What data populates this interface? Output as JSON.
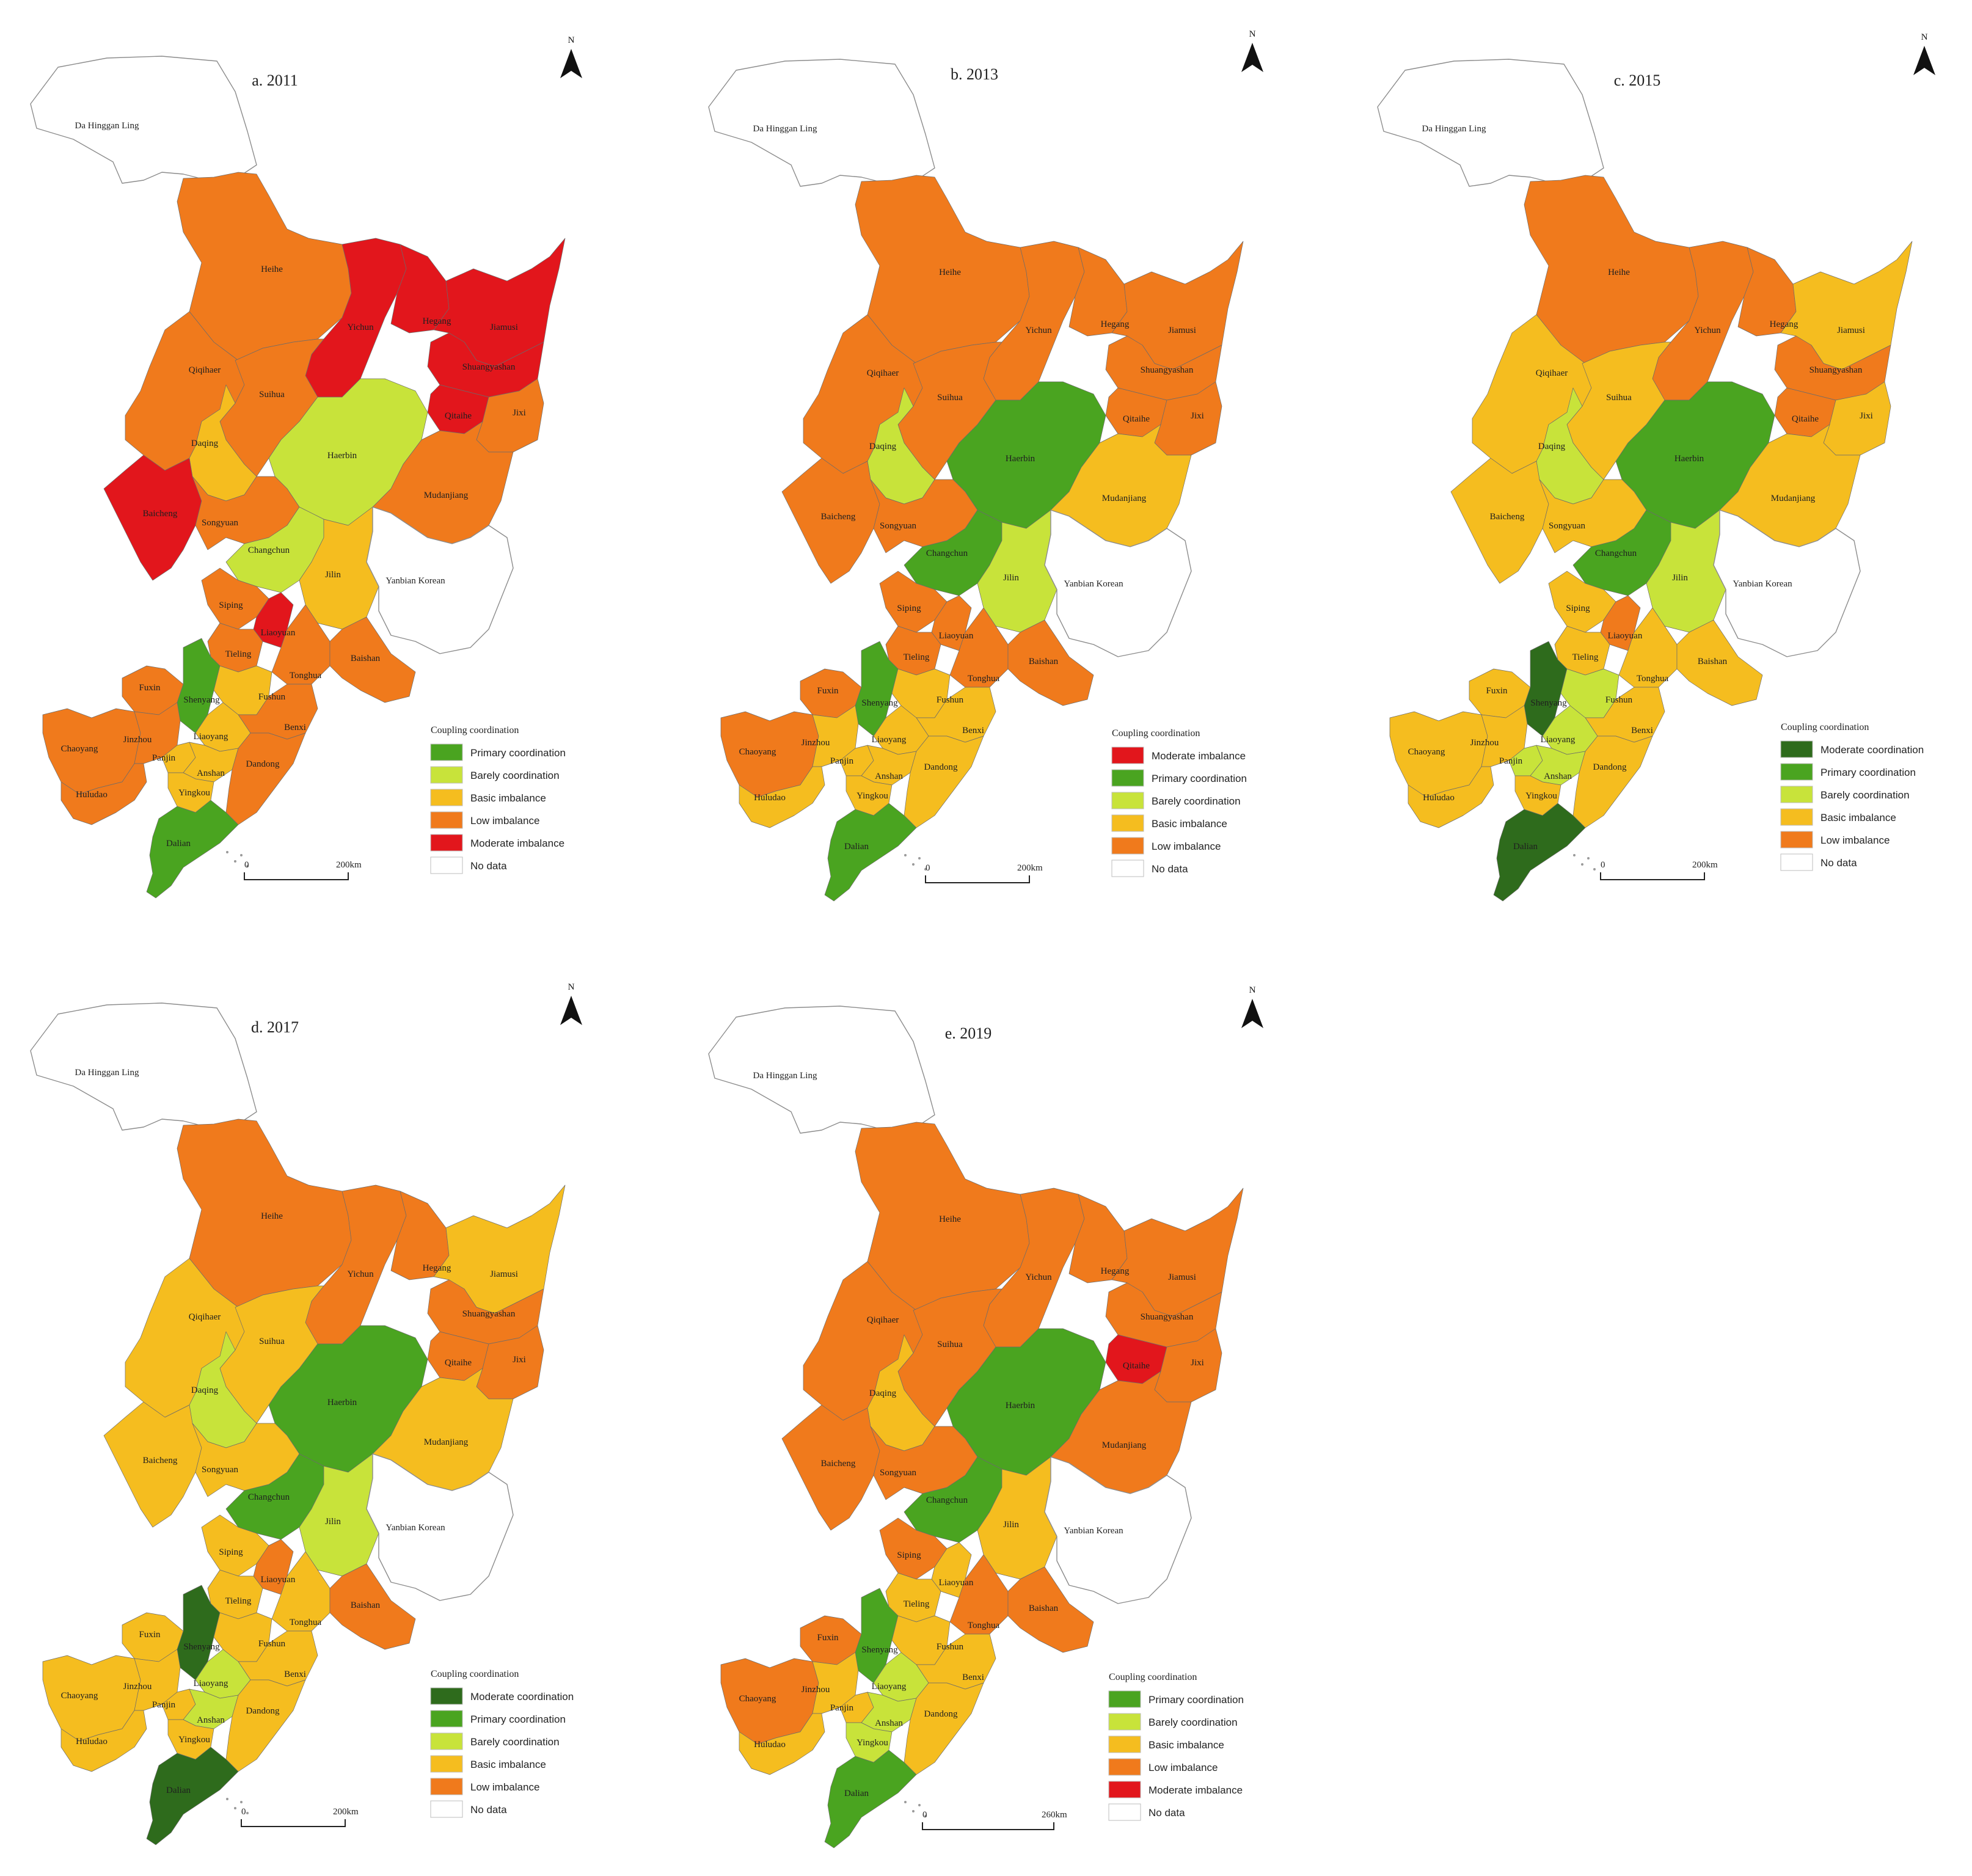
{
  "legend_title": "Coupling coordination",
  "north_label": "N",
  "colors": {
    "Moderate coordination": "#2e6b1c",
    "Primary coordination": "#4aa420",
    "Barely coordination": "#c8e33a",
    "Basic imbalance": "#f5bd1f",
    "Low imbalance": "#f07a1c",
    "Moderate imbalance": "#e2161c",
    "No data": "#ffffff"
  },
  "no_data_regions": [
    "Da Hinggan Ling",
    "Yanbian Korean"
  ],
  "region_names": [
    "Da Hinggan Ling",
    "Heihe",
    "Yichun",
    "Hegang",
    "Jiamusi",
    "Qiqihaer",
    "Shuangyashan",
    "Suihua",
    "Qitaihe",
    "Jixi",
    "Daqing",
    "Haerbin",
    "Mudanjiang",
    "Baicheng",
    "Songyuan",
    "Changchun",
    "Jilin",
    "Yanbian Korean",
    "Siping",
    "Liaoyuan",
    "Tieling",
    "Tonghua",
    "Baishan",
    "Fuxin",
    "Shenyang",
    "Fushun",
    "Benxi",
    "Chaoyang",
    "Jinzhou",
    "Liaoyang",
    "Panjin",
    "Anshan",
    "Dandong",
    "Huludao",
    "Yingkou",
    "Dalian"
  ],
  "panels": [
    {
      "title": "a. 2011",
      "scale_zero": "0",
      "scale_label": "200km",
      "legend": [
        "Primary coordination",
        "Barely coordination",
        "Basic imbalance",
        "Low imbalance",
        "Moderate imbalance",
        "No data"
      ],
      "values": {
        "Heihe": "Low imbalance",
        "Yichun": "Moderate imbalance",
        "Hegang": "Moderate imbalance",
        "Jiamusi": "Moderate imbalance",
        "Qiqihaer": "Low imbalance",
        "Shuangyashan": "Moderate imbalance",
        "Suihua": "Low imbalance",
        "Qitaihe": "Moderate imbalance",
        "Jixi": "Low imbalance",
        "Daqing": "Basic imbalance",
        "Haerbin": "Barely coordination",
        "Mudanjiang": "Low imbalance",
        "Baicheng": "Moderate imbalance",
        "Songyuan": "Low imbalance",
        "Changchun": "Barely coordination",
        "Jilin": "Basic imbalance",
        "Siping": "Low imbalance",
        "Liaoyuan": "Moderate imbalance",
        "Tieling": "Low imbalance",
        "Tonghua": "Low imbalance",
        "Baishan": "Low imbalance",
        "Fuxin": "Low imbalance",
        "Shenyang": "Primary coordination",
        "Fushun": "Basic imbalance",
        "Benxi": "Low imbalance",
        "Chaoyang": "Low imbalance",
        "Jinzhou": "Low imbalance",
        "Liaoyang": "Basic imbalance",
        "Panjin": "Basic imbalance",
        "Anshan": "Basic imbalance",
        "Dandong": "Low imbalance",
        "Huludao": "Low imbalance",
        "Yingkou": "Basic imbalance",
        "Dalian": "Primary coordination"
      }
    },
    {
      "title": "b. 2013",
      "scale_zero": "0",
      "scale_label": "200km",
      "legend": [
        "Moderate imbalance",
        "Primary coordination",
        "Barely coordination",
        "Basic imbalance",
        "Low  imbalance",
        "No data"
      ],
      "values": {
        "Heihe": "Low imbalance",
        "Yichun": "Low imbalance",
        "Hegang": "Low imbalance",
        "Jiamusi": "Low imbalance",
        "Qiqihaer": "Low imbalance",
        "Shuangyashan": "Low imbalance",
        "Suihua": "Low imbalance",
        "Qitaihe": "Low imbalance",
        "Jixi": "Low imbalance",
        "Daqing": "Barely coordination",
        "Haerbin": "Primary coordination",
        "Mudanjiang": "Basic imbalance",
        "Baicheng": "Low imbalance",
        "Songyuan": "Low imbalance",
        "Changchun": "Primary coordination",
        "Jilin": "Barely coordination",
        "Siping": "Low imbalance",
        "Liaoyuan": "Low imbalance",
        "Tieling": "Low imbalance",
        "Tonghua": "Low imbalance",
        "Baishan": "Low imbalance",
        "Fuxin": "Low imbalance",
        "Shenyang": "Primary coordination",
        "Fushun": "Basic imbalance",
        "Benxi": "Basic imbalance",
        "Chaoyang": "Low imbalance",
        "Jinzhou": "Basic imbalance",
        "Liaoyang": "Basic imbalance",
        "Panjin": "Basic imbalance",
        "Anshan": "Basic imbalance",
        "Dandong": "Basic imbalance",
        "Huludao": "Basic imbalance",
        "Yingkou": "Basic imbalance",
        "Dalian": "Primary coordination"
      }
    },
    {
      "title": "c. 2015",
      "scale_zero": "0",
      "scale_label": "200km",
      "legend": [
        "Moderate coordination",
        "Primary coordination",
        "Barely coordination",
        "Basic imbalance",
        "Low imbalance",
        "No data"
      ],
      "values": {
        "Heihe": "Low imbalance",
        "Yichun": "Low imbalance",
        "Hegang": "Low imbalance",
        "Jiamusi": "Basic imbalance",
        "Qiqihaer": "Basic imbalance",
        "Shuangyashan": "Low imbalance",
        "Suihua": "Basic imbalance",
        "Qitaihe": "Low imbalance",
        "Jixi": "Basic imbalance",
        "Daqing": "Barely coordination",
        "Haerbin": "Primary coordination",
        "Mudanjiang": "Basic imbalance",
        "Baicheng": "Basic imbalance",
        "Songyuan": "Basic imbalance",
        "Changchun": "Primary coordination",
        "Jilin": "Barely coordination",
        "Siping": "Basic imbalance",
        "Liaoyuan": "Low imbalance",
        "Tieling": "Basic imbalance",
        "Tonghua": "Basic imbalance",
        "Baishan": "Basic imbalance",
        "Fuxin": "Basic imbalance",
        "Shenyang": "Moderate coordination",
        "Fushun": "Barely coordination",
        "Benxi": "Basic imbalance",
        "Chaoyang": "Basic imbalance",
        "Jinzhou": "Basic imbalance",
        "Liaoyang": "Barely coordination",
        "Panjin": "Barely coordination",
        "Anshan": "Barely coordination",
        "Dandong": "Basic imbalance",
        "Huludao": "Basic imbalance",
        "Yingkou": "Basic imbalance",
        "Dalian": "Moderate coordination"
      }
    },
    {
      "title": "d. 2017",
      "scale_zero": "0",
      "scale_label": "200km",
      "legend": [
        "Moderate coordination",
        "Primary coordination",
        "Barely coordination",
        "Basic imbalance",
        "Low imbalance",
        "No data"
      ],
      "values": {
        "Heihe": "Low imbalance",
        "Yichun": "Low imbalance",
        "Hegang": "Low imbalance",
        "Jiamusi": "Basic imbalance",
        "Qiqihaer": "Basic imbalance",
        "Shuangyashan": "Low imbalance",
        "Suihua": "Basic imbalance",
        "Qitaihe": "Low imbalance",
        "Jixi": "Low imbalance",
        "Daqing": "Barely coordination",
        "Haerbin": "Primary coordination",
        "Mudanjiang": "Basic imbalance",
        "Baicheng": "Basic imbalance",
        "Songyuan": "Basic imbalance",
        "Changchun": "Primary coordination",
        "Jilin": "Barely coordination",
        "Siping": "Basic imbalance",
        "Liaoyuan": "Low imbalance",
        "Tieling": "Basic imbalance",
        "Tonghua": "Basic imbalance",
        "Baishan": "Low imbalance",
        "Fuxin": "Basic imbalance",
        "Shenyang": "Moderate coordination",
        "Fushun": "Basic imbalance",
        "Benxi": "Basic imbalance",
        "Chaoyang": "Basic imbalance",
        "Jinzhou": "Basic imbalance",
        "Liaoyang": "Barely coordination",
        "Panjin": "Basic imbalance",
        "Anshan": "Barely coordination",
        "Dandong": "Basic imbalance",
        "Huludao": "Basic imbalance",
        "Yingkou": "Basic imbalance",
        "Dalian": "Moderate coordination"
      }
    },
    {
      "title": "e. 2019",
      "scale_zero": "0",
      "scale_label": "260km",
      "legend": [
        "Primary coordination",
        "Barely coordination",
        "Basic imbalance",
        "Low imbalance",
        "Moderate imbalance",
        "No data"
      ],
      "values": {
        "Heihe": "Low imbalance",
        "Yichun": "Low imbalance",
        "Hegang": "Low imbalance",
        "Jiamusi": "Low imbalance",
        "Qiqihaer": "Low imbalance",
        "Shuangyashan": "Low imbalance",
        "Suihua": "Low imbalance",
        "Qitaihe": "Moderate imbalance",
        "Jixi": "Low imbalance",
        "Daqing": "Basic imbalance",
        "Haerbin": "Primary coordination",
        "Mudanjiang": "Low imbalance",
        "Baicheng": "Low imbalance",
        "Songyuan": "Low imbalance",
        "Changchun": "Primary coordination",
        "Jilin": "Basic imbalance",
        "Siping": "Low imbalance",
        "Liaoyuan": "Basic imbalance",
        "Tieling": "Basic imbalance",
        "Tonghua": "Low imbalance",
        "Baishan": "Low imbalance",
        "Fuxin": "Low imbalance",
        "Shenyang": "Primary coordination",
        "Fushun": "Basic imbalance",
        "Benxi": "Basic imbalance",
        "Chaoyang": "Low imbalance",
        "Jinzhou": "Basic imbalance",
        "Liaoyang": "Barely coordination",
        "Panjin": "Basic imbalance",
        "Anshan": "Barely coordination",
        "Dandong": "Basic imbalance",
        "Huludao": "Basic imbalance",
        "Yingkou": "Barely coordination",
        "Dalian": "Primary coordination"
      }
    }
  ]
}
